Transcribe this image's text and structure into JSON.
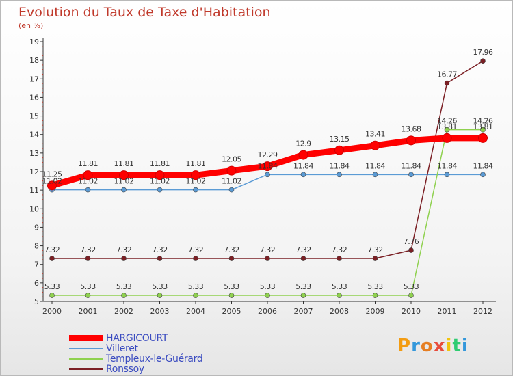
{
  "chart_data": {
    "type": "line",
    "title": "Evolution du Taux de Taxe d'Habitation",
    "subtitle": "(en %)",
    "xlabel": "",
    "ylabel": "",
    "categories": [
      "2000",
      "2001",
      "2002",
      "2003",
      "2004",
      "2005",
      "2006",
      "2007",
      "2008",
      "2009",
      "2010",
      "2011",
      "2012"
    ],
    "ylim": [
      5,
      19
    ],
    "yticks": [
      5,
      6,
      7,
      8,
      9,
      10,
      11,
      12,
      13,
      14,
      15,
      16,
      17,
      18,
      19
    ],
    "grid": false,
    "legend_position": "bottom-left",
    "series": [
      {
        "name": "HARGICOURT",
        "color": "#ff0000",
        "values": [
          11.25,
          11.81,
          11.81,
          11.81,
          11.81,
          12.05,
          12.29,
          12.9,
          13.15,
          13.41,
          13.68,
          13.81,
          13.81
        ],
        "labels": [
          "11.25",
          "11.81",
          "11.81",
          "11.81",
          "11.81",
          "12.05",
          "12.29",
          "12.9",
          "13.15",
          "13.41",
          "13.68",
          "13.81",
          "13.81"
        ]
      },
      {
        "name": "Villeret",
        "color": "#5b9bd5",
        "values": [
          11.02,
          11.02,
          11.02,
          11.02,
          11.02,
          11.02,
          11.84,
          11.84,
          11.84,
          11.84,
          11.84,
          11.84,
          11.84
        ],
        "labels": [
          "11.02",
          "11.02",
          "11.02",
          "11.02",
          "11.02",
          "11.02",
          "11.84",
          "11.84",
          "11.84",
          "11.84",
          "11.84",
          "11.84",
          "11.84"
        ]
      },
      {
        "name": "Templeux-le-Guérard",
        "color": "#8fd14f",
        "values": [
          5.33,
          5.33,
          5.33,
          5.33,
          5.33,
          5.33,
          5.33,
          5.33,
          5.33,
          5.33,
          5.33,
          14.26,
          14.26
        ],
        "labels": [
          "5.33",
          "5.33",
          "5.33",
          "5.33",
          "5.33",
          "5.33",
          "5.33",
          "5.33",
          "5.33",
          "5.33",
          "5.33",
          "14.26",
          "14.26"
        ]
      },
      {
        "name": "Ronssoy",
        "color": "#7b1f24",
        "values": [
          7.32,
          7.32,
          7.32,
          7.32,
          7.32,
          7.32,
          7.32,
          7.32,
          7.32,
          7.32,
          7.76,
          16.77,
          17.96
        ],
        "labels": [
          "7.32",
          "7.32",
          "7.32",
          "7.32",
          "7.32",
          "7.32",
          "7.32",
          "7.32",
          "7.32",
          "7.32",
          "7.76",
          "16.77",
          "17.96"
        ]
      }
    ]
  },
  "logo": {
    "letters": [
      "P",
      "r",
      "o",
      "x",
      "i",
      "t",
      "i"
    ],
    "colors": [
      "#f39c12",
      "#3498db",
      "#e67e22",
      "#e74c3c",
      "#f1c40f",
      "#2ecc71",
      "#3498db"
    ]
  }
}
